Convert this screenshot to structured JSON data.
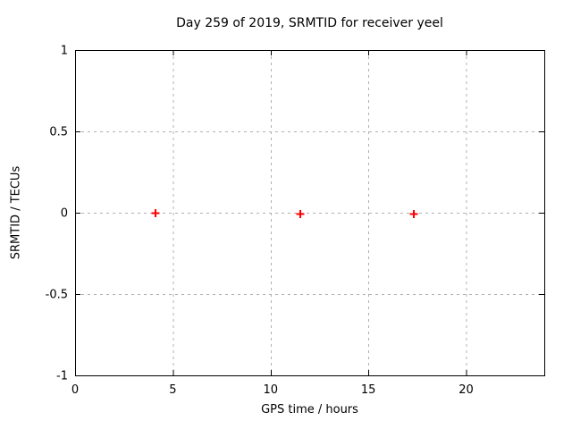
{
  "window": {
    "background": "#ffffff"
  },
  "chart_data": {
    "type": "scatter",
    "title": "Day 259 of 2019, SRMTID for receiver yeel",
    "xlabel": "GPS time / hours",
    "ylabel": "SRMTID / TECUs",
    "xlim": [
      0,
      24
    ],
    "ylim": [
      -1,
      1
    ],
    "xticks": [
      0,
      5,
      10,
      15,
      20
    ],
    "yticks": [
      -1,
      -0.5,
      0,
      0.5,
      1
    ],
    "grid": true,
    "legend_position": "none",
    "series": [
      {
        "name": "SRMTID",
        "marker": "plus",
        "color": "#ff0000",
        "points": [
          {
            "x": 4.1,
            "y": 0.0
          },
          {
            "x": 11.5,
            "y": -0.005
          },
          {
            "x": 17.3,
            "y": -0.005
          }
        ]
      }
    ],
    "colors": {
      "border": "#000000",
      "grid": "#b0b0b0",
      "text": "#000000"
    }
  }
}
